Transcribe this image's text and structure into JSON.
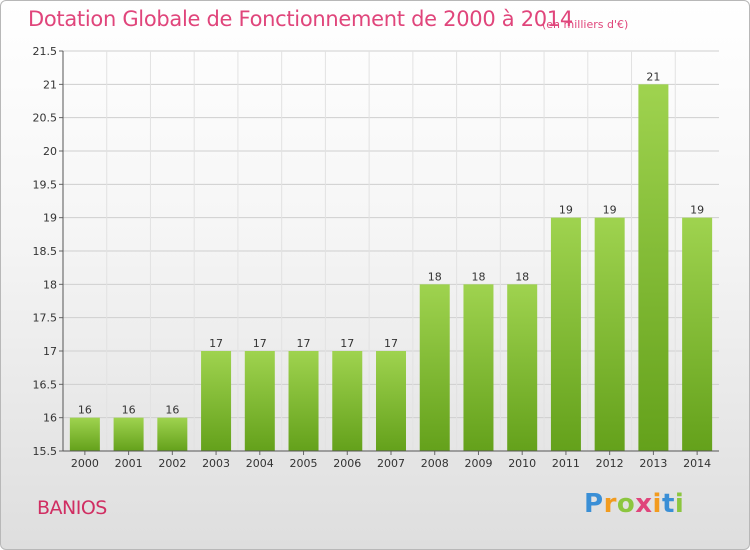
{
  "header": {
    "title": "Dotation Globale de Fonctionnement de 2000 à 2014",
    "unit": "(en milliers d'€)"
  },
  "footer": {
    "commune": "BANIOS",
    "logo": {
      "letters": [
        "P",
        "r",
        "o",
        "x",
        "i",
        "t",
        "i"
      ],
      "colors": [
        "#3a8fd6",
        "#f29b1e",
        "#8cc63f",
        "#e0457b",
        "#f29b1e",
        "#3a8fd6",
        "#8cc63f"
      ]
    }
  },
  "chart_data": {
    "type": "bar",
    "title": "Dotation Globale de Fonctionnement de 2000 à 2014",
    "subtitle": "(en milliers d'€)",
    "xlabel": "",
    "ylabel": "",
    "categories": [
      "2000",
      "2001",
      "2002",
      "2003",
      "2004",
      "2005",
      "2006",
      "2007",
      "2008",
      "2009",
      "2010",
      "2011",
      "2012",
      "2013",
      "2014"
    ],
    "values": [
      16,
      16,
      16,
      17,
      17,
      17,
      17,
      17,
      18,
      18,
      18,
      19,
      19,
      21,
      19
    ],
    "data_labels": [
      "16",
      "16",
      "16",
      "17",
      "17",
      "17",
      "17",
      "17",
      "18",
      "18",
      "18",
      "19",
      "19",
      "21",
      "19"
    ],
    "ylim": [
      15.5,
      21.5
    ],
    "yticks": [
      15.5,
      16,
      16.5,
      17,
      17.5,
      18,
      18.5,
      19,
      19.5,
      20,
      20.5,
      21,
      21.5
    ],
    "ytick_labels": [
      "15.5",
      "16",
      "16.5",
      "17",
      "17.5",
      "18",
      "18.5",
      "19",
      "19.5",
      "20",
      "20.5",
      "21",
      "21.5"
    ],
    "grid": true,
    "bar_color": "#8cc63f",
    "legend": "none"
  }
}
